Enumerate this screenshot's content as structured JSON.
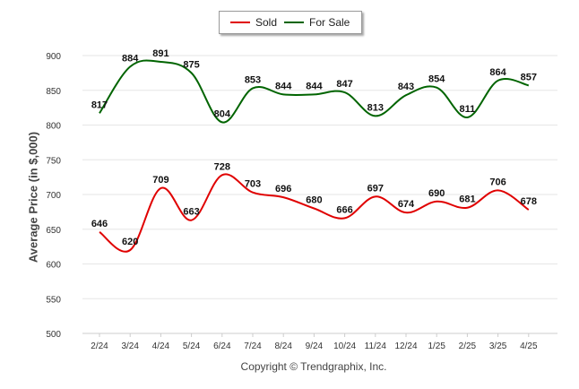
{
  "legend": {
    "sold_label": "Sold",
    "forsale_label": "For Sale"
  },
  "credit": "Copyright © Trendgraphix, Inc.",
  "chart_data": {
    "type": "line",
    "ylabel": "Average Price (in $,000)",
    "xlabel": "",
    "ylim": [
      500,
      900
    ],
    "yticks": [
      500,
      550,
      600,
      650,
      700,
      750,
      800,
      850,
      900
    ],
    "grid": true,
    "legend_position": "top-center",
    "categories": [
      "2/24",
      "3/24",
      "4/24",
      "5/24",
      "6/24",
      "7/24",
      "8/24",
      "9/24",
      "10/24",
      "11/24",
      "12/24",
      "1/25",
      "2/25",
      "3/25",
      "4/25"
    ],
    "series": [
      {
        "name": "Sold",
        "color": "#e00000",
        "values": [
          646,
          620,
          709,
          663,
          728,
          703,
          696,
          680,
          666,
          697,
          674,
          690,
          681,
          706,
          678
        ]
      },
      {
        "name": "For Sale",
        "color": "#006400",
        "values": [
          817,
          884,
          891,
          875,
          804,
          853,
          844,
          844,
          847,
          813,
          843,
          854,
          811,
          864,
          857
        ]
      }
    ]
  }
}
